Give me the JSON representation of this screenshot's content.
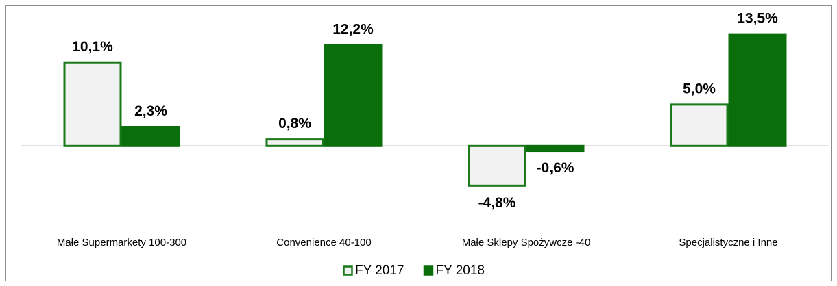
{
  "chart_data": {
    "type": "bar",
    "categories": [
      "Małe Supermarkety 100-300",
      "Convenience 40-100",
      "Małe Sklepy Spożywcze -40",
      "Specjalistyczne i Inne"
    ],
    "series": [
      {
        "name": "FY 2017",
        "color": "#f2f2f2",
        "stroke": "#1a7a1a",
        "values": [
          10.1,
          0.8,
          -4.8,
          5.0
        ],
        "value_labels": [
          "10,1%",
          "0,8%",
          "-4,8%",
          "5,0%"
        ]
      },
      {
        "name": "FY 2018",
        "color": "#0a6e0a",
        "stroke": "#0a6e0a",
        "values": [
          2.3,
          12.2,
          -0.6,
          13.5
        ],
        "value_labels": [
          "2,3%",
          "12,2%",
          "-0,6%",
          "13,5%"
        ]
      }
    ],
    "ylim": [
      -8,
      15
    ],
    "legend": "bottom"
  }
}
